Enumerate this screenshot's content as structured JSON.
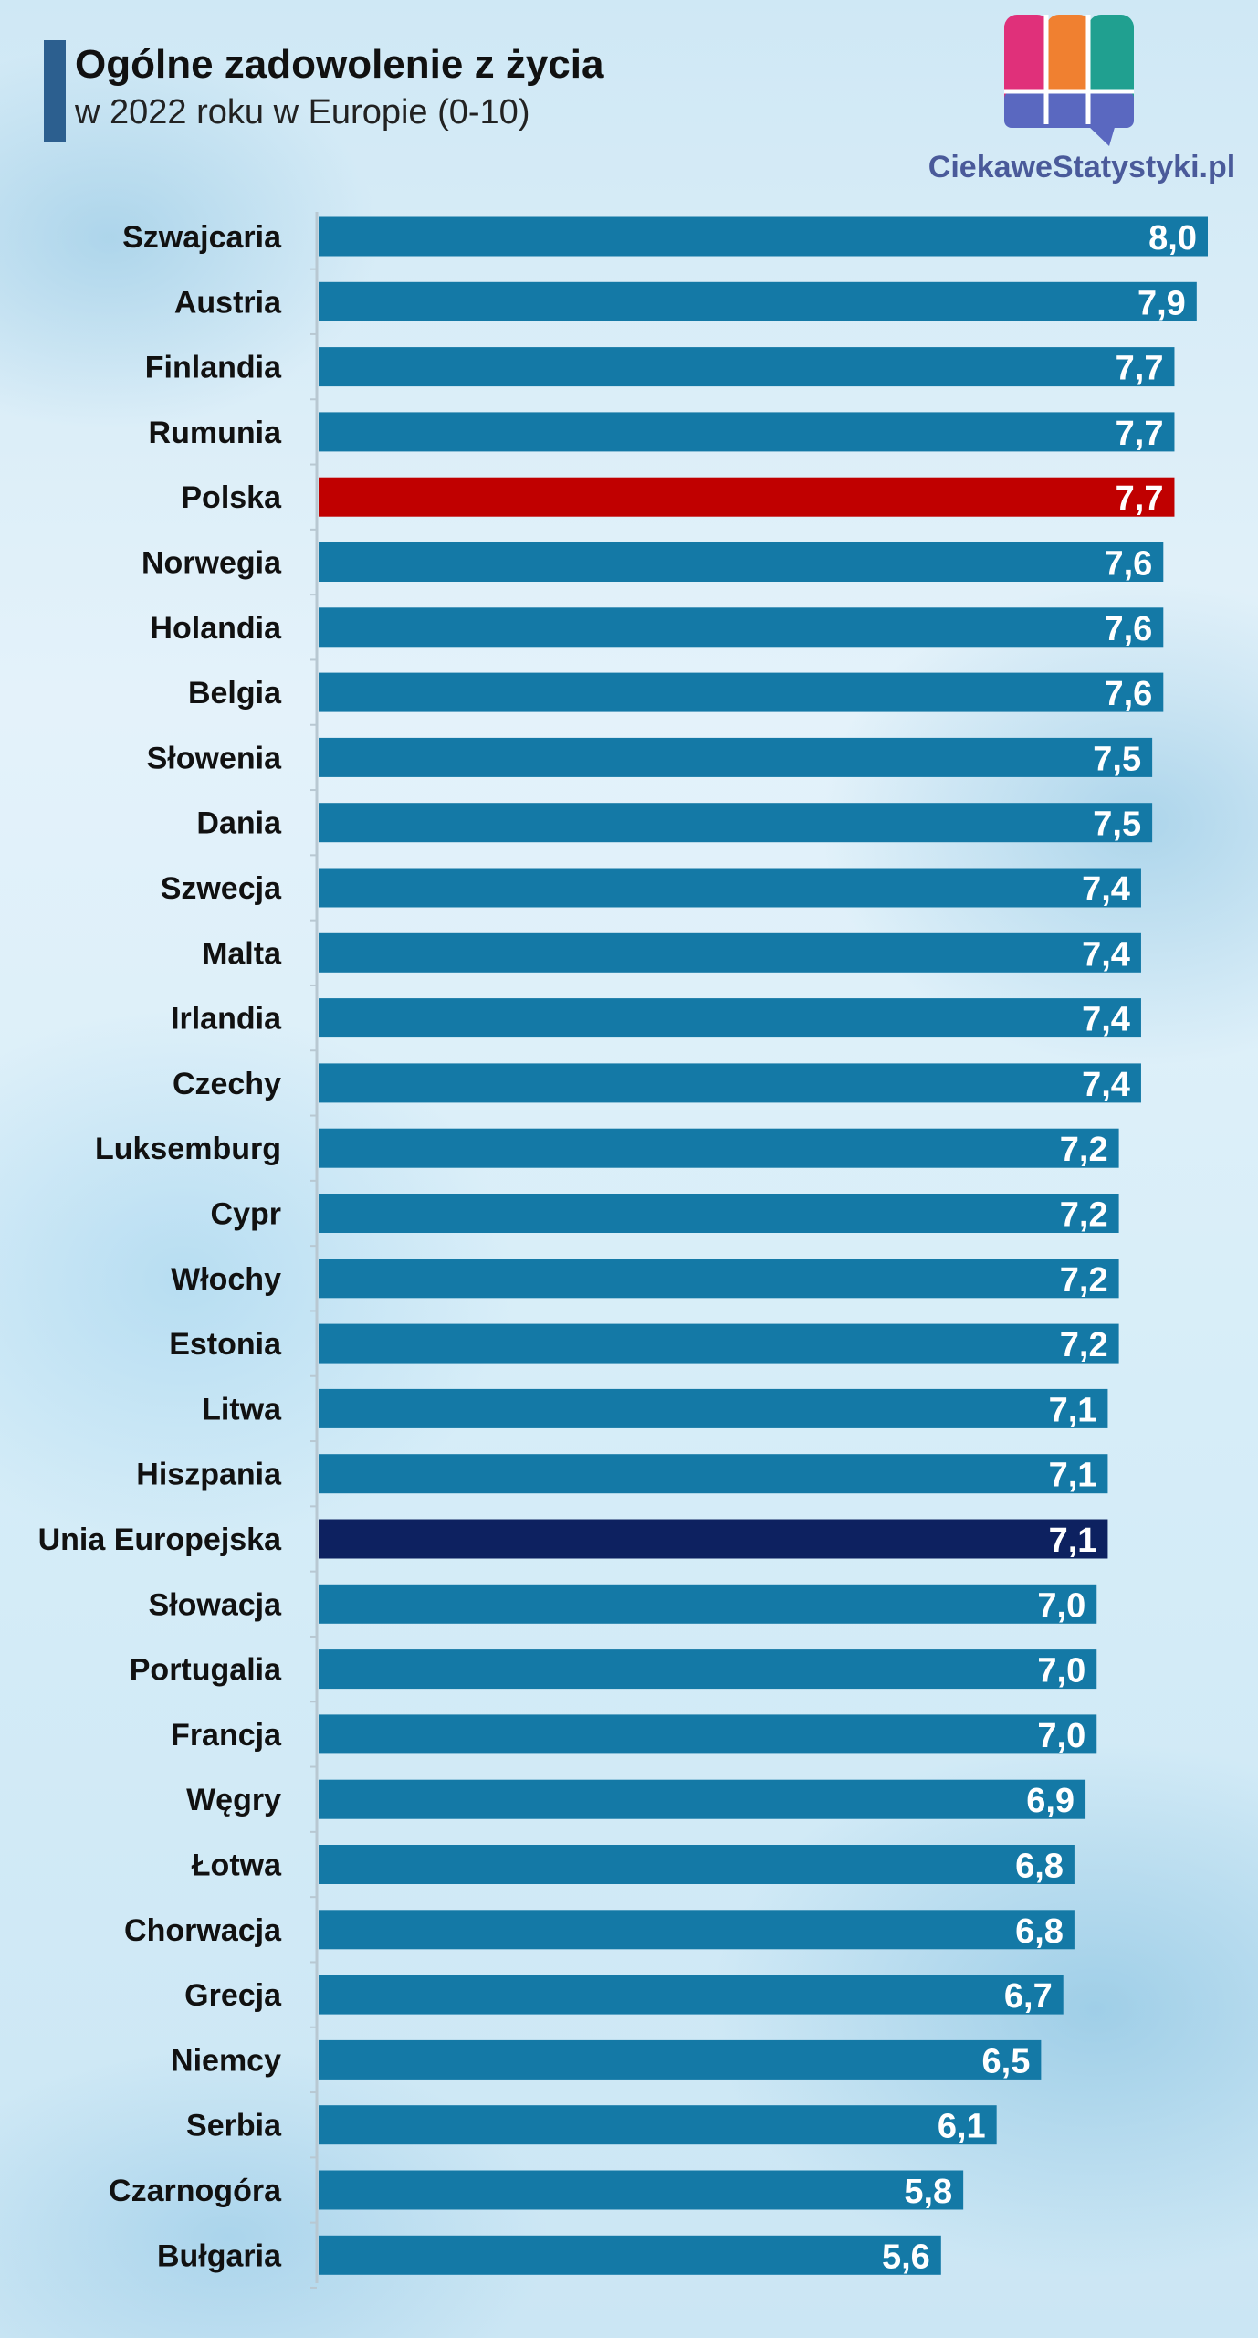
{
  "header": {
    "title": "Ogólne zadowolenie z życia",
    "subtitle": "w 2022 roku w Europie (0-10)",
    "logo_text": "CiekaweStatystyki.pl"
  },
  "colors": {
    "bar_default": "#1479a6",
    "bar_highlight_poland": "#c00000",
    "bar_highlight_eu": "#0d2160",
    "title_accent": "#2c5f8f",
    "logo_pink": "#e0307a",
    "logo_orange": "#f08030",
    "logo_teal": "#20a090",
    "logo_blue": "#5a68c0"
  },
  "chart_data": {
    "type": "bar",
    "orientation": "horizontal",
    "title": "Ogólne zadowolenie z życia",
    "subtitle": "w 2022 roku w Europie (0-10)",
    "xlim": [
      0,
      8
    ],
    "grid": false,
    "legend": "none",
    "categories": [
      "Szwajcaria",
      "Austria",
      "Finlandia",
      "Rumunia",
      "Polska",
      "Norwegia",
      "Holandia",
      "Belgia",
      "Słowenia",
      "Dania",
      "Szwecja",
      "Malta",
      "Irlandia",
      "Czechy",
      "Luksemburg",
      "Cypr",
      "Włochy",
      "Estonia",
      "Litwa",
      "Hiszpania",
      "Unia Europejska",
      "Słowacja",
      "Portugalia",
      "Francja",
      "Węgry",
      "Łotwa",
      "Chorwacja",
      "Grecja",
      "Niemcy",
      "Serbia",
      "Czarnogóra",
      "Bułgaria"
    ],
    "values": [
      8.0,
      7.9,
      7.7,
      7.7,
      7.7,
      7.6,
      7.6,
      7.6,
      7.5,
      7.5,
      7.4,
      7.4,
      7.4,
      7.4,
      7.2,
      7.2,
      7.2,
      7.2,
      7.1,
      7.1,
      7.1,
      7.0,
      7.0,
      7.0,
      6.9,
      6.8,
      6.8,
      6.7,
      6.5,
      6.1,
      5.8,
      5.6
    ],
    "value_labels": [
      "8,0",
      "7,9",
      "7,7",
      "7,7",
      "7,7",
      "7,6",
      "7,6",
      "7,6",
      "7,5",
      "7,5",
      "7,4",
      "7,4",
      "7,4",
      "7,4",
      "7,2",
      "7,2",
      "7,2",
      "7,2",
      "7,1",
      "7,1",
      "7,1",
      "7,0",
      "7,0",
      "7,0",
      "6,9",
      "6,8",
      "6,8",
      "6,7",
      "6,5",
      "6,1",
      "5,8",
      "5,6"
    ],
    "highlights": {
      "Polska": "#c00000",
      "Unia Europejska": "#0d2160"
    }
  }
}
